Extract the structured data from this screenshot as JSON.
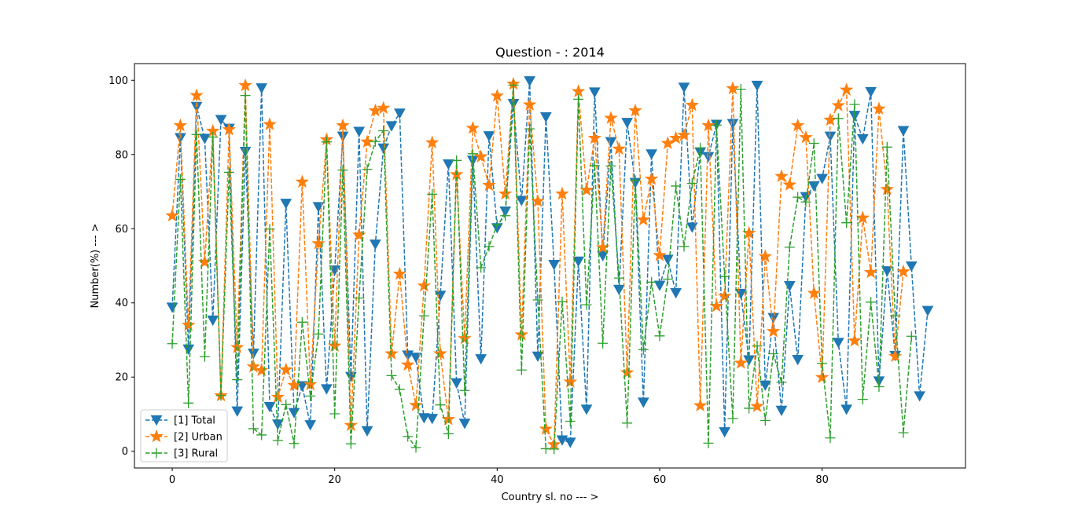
{
  "chart_data": {
    "type": "line",
    "title": "Question - : 2014",
    "xlabel": "Country sl. no --- >",
    "ylabel": "Number(%) --- >",
    "xlim": [
      -4.65,
      97.65
    ],
    "ylim": [
      -4.5,
      104.5
    ],
    "xticks": [
      0,
      20,
      40,
      60,
      80
    ],
    "yticks": [
      0,
      20,
      40,
      60,
      80,
      100
    ],
    "grid": false,
    "legend_position": "lower-left",
    "series": [
      {
        "name": "[1] Total",
        "color": "#1f77b4",
        "marker": "triangle-down",
        "x": [
          0,
          1,
          2,
          3,
          4,
          5,
          6,
          7,
          8,
          9,
          10,
          11,
          12,
          13,
          14,
          15,
          16,
          17,
          18,
          19,
          20,
          21,
          22,
          23,
          24,
          25,
          26,
          27,
          28,
          29,
          30,
          31,
          32,
          33,
          34,
          35,
          36,
          37,
          38,
          39,
          40,
          41,
          42,
          43,
          44,
          45,
          46,
          47,
          48,
          49,
          50,
          51,
          52,
          53,
          54,
          55,
          56,
          57,
          58,
          59,
          60,
          61,
          62,
          63,
          64,
          65,
          66,
          67,
          68,
          69,
          70,
          71,
          72,
          73,
          74,
          75,
          76,
          77,
          78,
          79,
          80,
          81,
          82,
          83,
          84,
          85,
          86,
          87,
          88,
          89,
          90,
          91,
          92,
          93
        ],
        "values": [
          38.8,
          84.5,
          27.5,
          92.9,
          84.3,
          35.3,
          89.4,
          87.0,
          10.8,
          80.8,
          26.4,
          97.9,
          12.0,
          7.3,
          66.8,
          10.4,
          17.6,
          7.1,
          65.9,
          16.8,
          48.8,
          84.9,
          20.1,
          86.2,
          5.5,
          55.8,
          81.7,
          87.7,
          91.1,
          25.9,
          25.3,
          9.0,
          8.8,
          42.0,
          77.4,
          18.4,
          7.5,
          78.4,
          24.9,
          85.0,
          60.2,
          64.7,
          93.7,
          67.6,
          99.8,
          25.6,
          90.1,
          50.3,
          3.0,
          2.4,
          51.2,
          11.3,
          96.8,
          52.7,
          83.4,
          43.6,
          88.6,
          72.4,
          13.2,
          80.1,
          44.7,
          51.7,
          42.7,
          98.1,
          60.4,
          80.6,
          79.4,
          88.1,
          5.2,
          88.3,
          42.5,
          24.6,
          98.6,
          17.8,
          36.0,
          11.0,
          44.6,
          24.7,
          68.6,
          71.5,
          73.5,
          84.9,
          29.3,
          11.3,
          90.5,
          84.2,
          96.9,
          18.9,
          48.6,
          25.8,
          86.4,
          49.9,
          14.9,
          37.9
        ]
      },
      {
        "name": "[2] Urban",
        "color": "#ff7f0e",
        "marker": "star",
        "x": [
          0,
          1,
          2,
          3,
          4,
          5,
          6,
          7,
          8,
          9,
          10,
          11,
          12,
          13,
          14,
          15,
          16,
          17,
          18,
          19,
          20,
          21,
          22,
          23,
          24,
          25,
          26,
          27,
          28,
          29,
          30,
          31,
          32,
          33,
          34,
          35,
          36,
          37,
          38,
          39,
          40,
          41,
          42,
          43,
          44,
          45,
          46,
          47,
          48,
          49,
          50,
          51,
          52,
          53,
          54,
          55,
          56,
          57,
          58,
          59,
          60,
          61,
          62,
          63,
          64,
          65,
          66,
          67,
          68,
          69,
          70,
          71,
          72,
          73,
          74,
          75,
          76,
          77,
          78,
          79,
          80,
          81,
          82,
          83,
          84,
          85,
          86,
          87,
          88,
          89,
          90
        ],
        "values": [
          63.5,
          87.8,
          34.0,
          95.9,
          51.0,
          86.3,
          15.0,
          86.7,
          28.0,
          98.6,
          22.8,
          21.8,
          88.1,
          14.6,
          22.0,
          17.8,
          72.6,
          18.0,
          56.0,
          84.0,
          28.4,
          87.8,
          7.0,
          58.3,
          83.4,
          91.8,
          92.5,
          26.3,
          47.8,
          23.3,
          12.4,
          44.6,
          83.2,
          26.3,
          8.6,
          74.6,
          30.4,
          87.1,
          79.4,
          71.7,
          95.8,
          69.4,
          99.0,
          31.4,
          93.4,
          67.4,
          6.0,
          1.8,
          69.4,
          18.7,
          97.0,
          70.4,
          84.4,
          54.9,
          89.8,
          81.5,
          21.2,
          91.8,
          62.4,
          73.4,
          52.8,
          83.0,
          84.4,
          85.2,
          93.3,
          12.3,
          87.8,
          39.1,
          41.8,
          97.8,
          23.8,
          58.8,
          12.1,
          52.5,
          32.3,
          74.1,
          71.8,
          87.8,
          84.6,
          42.6,
          19.9,
          89.3,
          93.2,
          97.4,
          29.8,
          62.9,
          48.2,
          92.3,
          70.6,
          25.6,
          48.4
        ]
      },
      {
        "name": "[3] Rural",
        "color": "#2ca02c",
        "marker": "plus",
        "x": [
          0,
          1,
          2,
          3,
          4,
          5,
          6,
          7,
          8,
          9,
          10,
          11,
          12,
          13,
          14,
          15,
          16,
          17,
          18,
          19,
          20,
          21,
          22,
          23,
          24,
          25,
          26,
          27,
          28,
          29,
          30,
          31,
          32,
          33,
          34,
          35,
          36,
          37,
          38,
          39,
          40,
          41,
          42,
          43,
          44,
          45,
          46,
          47,
          48,
          49,
          50,
          51,
          52,
          53,
          54,
          55,
          56,
          57,
          58,
          59,
          60,
          61,
          62,
          63,
          64,
          65,
          66,
          67,
          68,
          69,
          70,
          71,
          72,
          73,
          74,
          75,
          76,
          77,
          78,
          79,
          80,
          81,
          82,
          83,
          84,
          85,
          86,
          87,
          88,
          89,
          90,
          91
        ],
        "values": [
          29.0,
          73.3,
          13.0,
          85.4,
          25.5,
          84.7,
          15.0,
          75.2,
          19.3,
          95.9,
          6.1,
          4.4,
          59.9,
          2.9,
          12.6,
          2.1,
          34.8,
          14.9,
          31.6,
          83.4,
          10.1,
          75.8,
          2.0,
          41.3,
          76.0,
          83.5,
          86.4,
          20.4,
          16.7,
          4.0,
          1.0,
          36.5,
          69.3,
          12.5,
          4.7,
          78.4,
          16.4,
          80.2,
          49.5,
          55.2,
          61.1,
          63.5,
          98.7,
          21.9,
          86.9,
          40.8,
          0.7,
          0.6,
          40.3,
          8.1,
          94.9,
          39.5,
          77.0,
          29.1,
          76.9,
          46.7,
          7.6,
          73.0,
          27.4,
          45.6,
          31.1,
          46.4,
          71.5,
          55.2,
          72.2,
          81.8,
          2.2,
          87.9,
          47.1,
          8.8,
          97.6,
          11.6,
          28.4,
          8.3,
          26.3,
          18.6,
          55.0,
          68.5,
          67.2,
          83.0,
          23.7,
          3.6,
          89.7,
          61.6,
          93.5,
          14.0,
          40.2,
          17.4,
          82.0,
          36.5,
          5.0,
          31.0
        ]
      }
    ]
  }
}
